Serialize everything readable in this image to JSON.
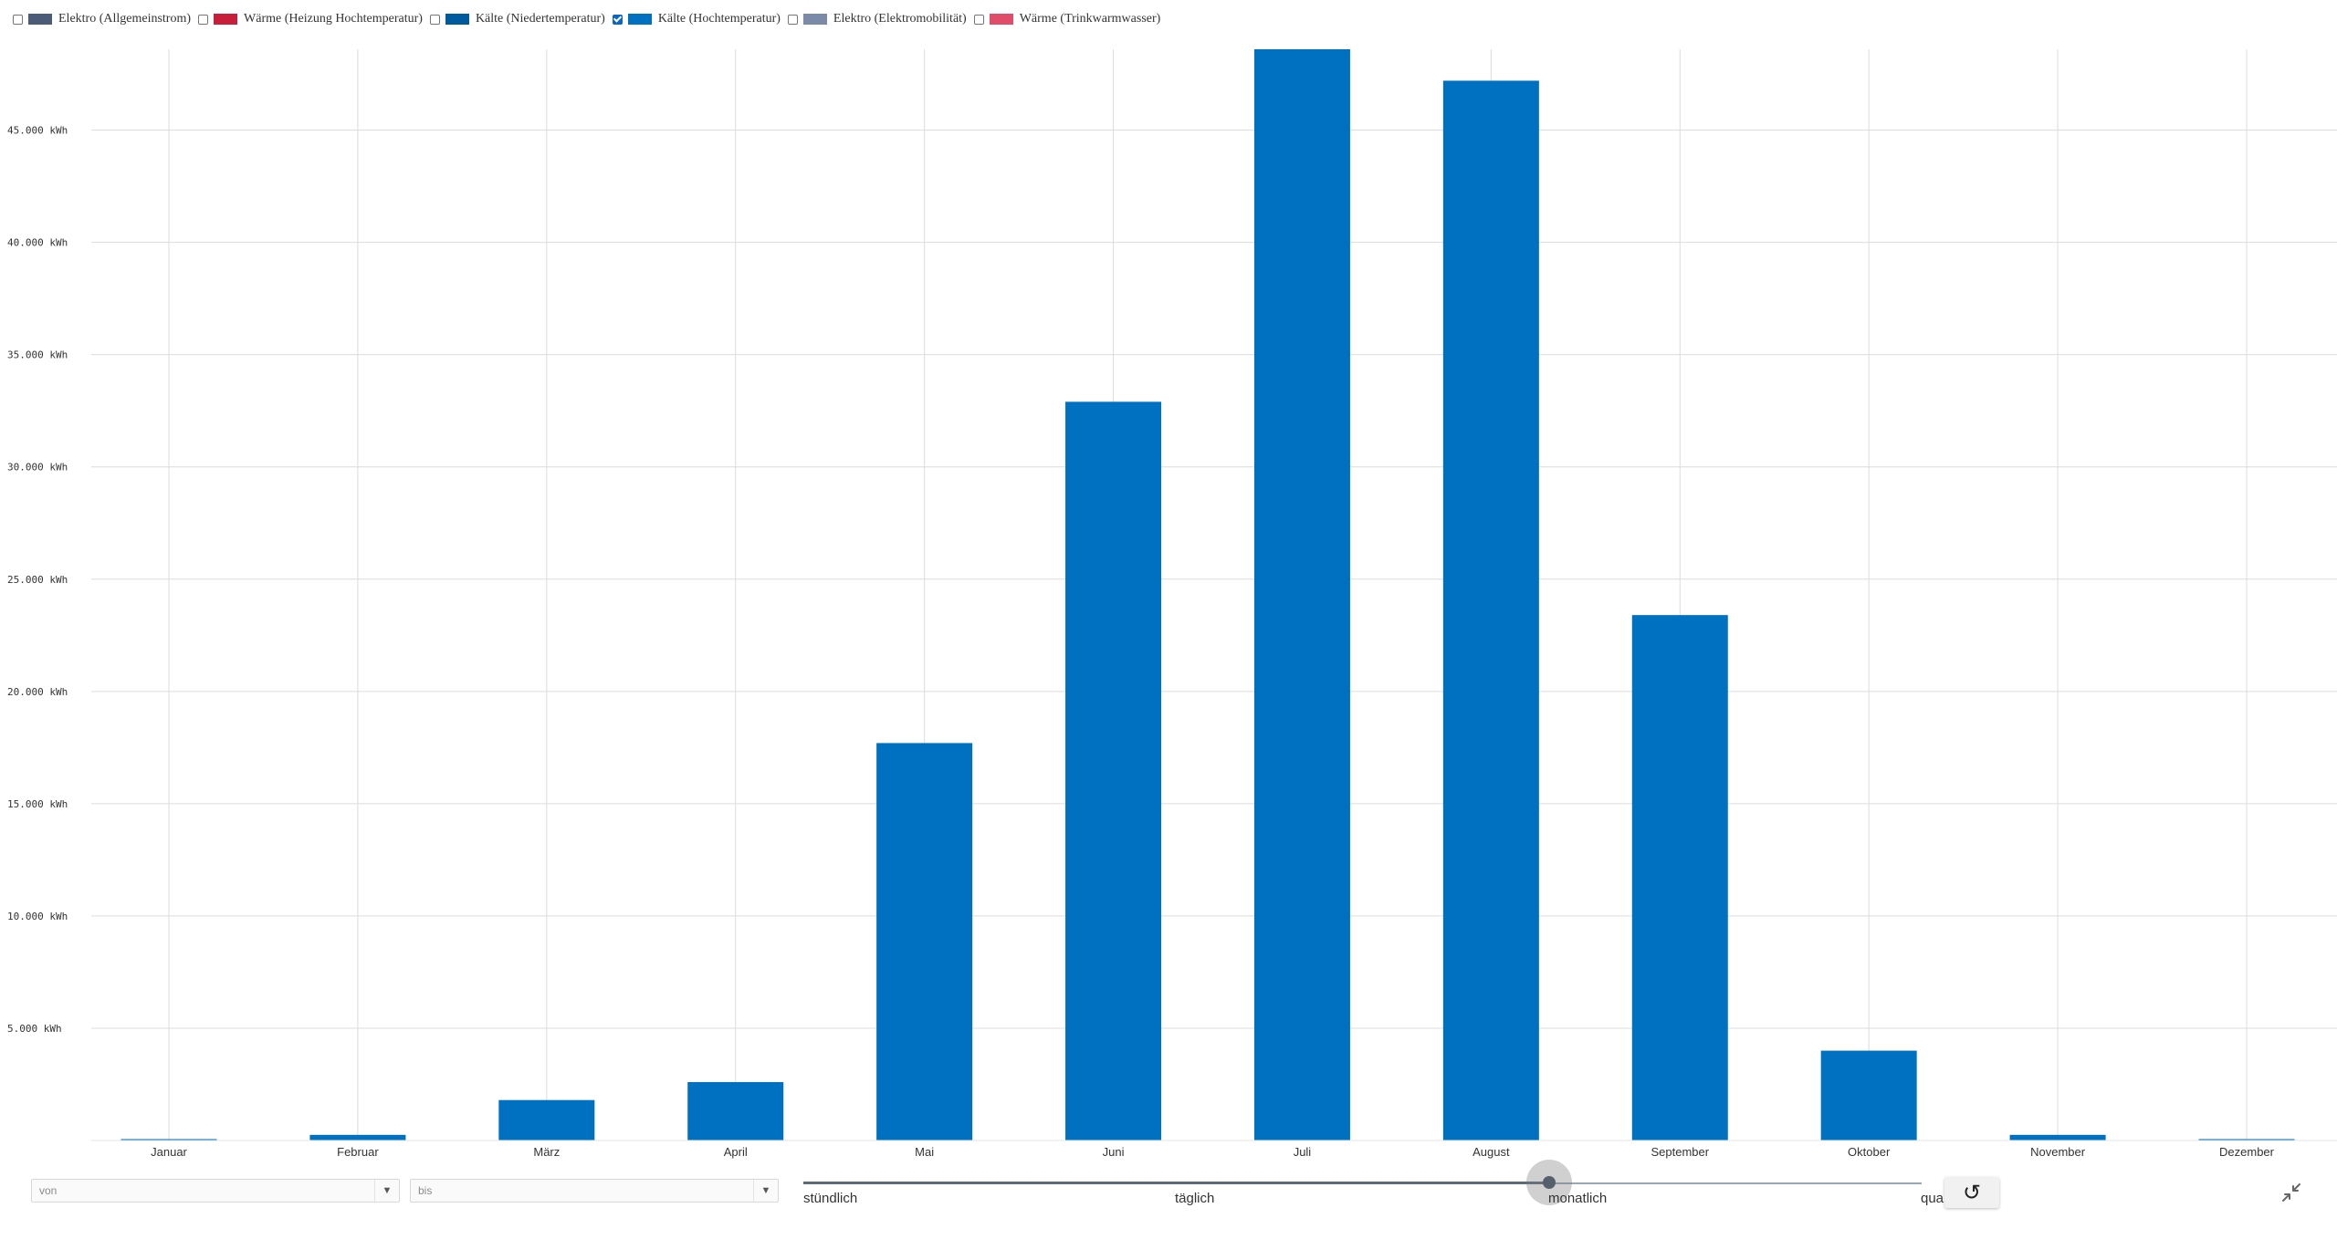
{
  "legend": [
    {
      "label": "Elektro (Allgemeinstrom)",
      "color": "#4a5c78",
      "checked": false
    },
    {
      "label": "Wärme (Heizung Hochtemperatur)",
      "color": "#c81e3c",
      "checked": false
    },
    {
      "label": "Kälte (Niedertemperatur)",
      "color": "#005a9e",
      "checked": false
    },
    {
      "label": "Kälte (Hochtemperatur)",
      "color": "#0070c0",
      "checked": true
    },
    {
      "label": "Elektro (Elektromobilität)",
      "color": "#7a8aa8",
      "checked": false
    },
    {
      "label": "Wärme (Trinkwarmwasser)",
      "color": "#e04c6a",
      "checked": false
    }
  ],
  "chart_data": {
    "type": "bar",
    "categories": [
      "Januar",
      "Februar",
      "März",
      "April",
      "Mai",
      "Juni",
      "Juli",
      "August",
      "September",
      "Oktober",
      "November",
      "Dezember"
    ],
    "series": [
      {
        "name": "Kälte (Hochtemperatur)",
        "color": "#0070c0",
        "values": [
          50,
          250,
          1800,
          2600,
          17700,
          32900,
          48600,
          47200,
          23400,
          4000,
          250,
          50
        ]
      }
    ],
    "yticks": [
      5000,
      10000,
      15000,
      20000,
      25000,
      30000,
      35000,
      40000,
      45000
    ],
    "ytick_labels": [
      "5.000 kWh",
      "10.000 kWh",
      "15.000 kWh",
      "20.000 kWh",
      "25.000 kWh",
      "30.000 kWh",
      "35.000 kWh",
      "40.000 kWh",
      "45.000 kWh"
    ],
    "ylim": [
      0,
      48600
    ],
    "grid": true,
    "legend_position": "top-left"
  },
  "controls": {
    "from_placeholder": "von",
    "to_placeholder": "bis",
    "dropdown_arrow": "▼",
    "resolution_labels": [
      "stündlich",
      "täglich",
      "monatlich",
      "quar"
    ],
    "resolution_selected": "monatlich",
    "reset_icon": "↺",
    "collapse_icon": "collapse-icon"
  }
}
